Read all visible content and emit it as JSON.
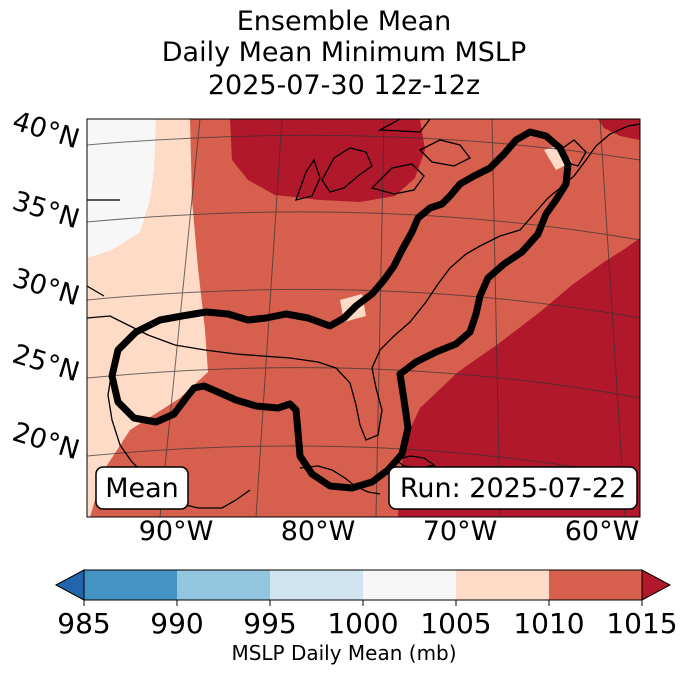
{
  "title": {
    "line1": "Ensemble Mean",
    "line2": "Daily Mean Minimum MSLP",
    "line3": "2025-07-30 12z-12z"
  },
  "map": {
    "lat_labels": [
      "40°N",
      "35°N",
      "30°N",
      "25°N",
      "20°N"
    ],
    "lon_labels": [
      "90°W",
      "80°W",
      "70°W",
      "60°W"
    ],
    "left_badge": "Mean",
    "right_badge": "Run: 2025-07-22",
    "colors": {
      "c1000_1005": "#f7f7f7",
      "c1005_1010": "#fddbc7",
      "c1010_1015": "#d6604d",
      "c1015_plus": "#b2182b",
      "contour": "#000000"
    }
  },
  "colorbar": {
    "ticks": [
      "985",
      "990",
      "995",
      "1000",
      "1005",
      "1010",
      "1015"
    ],
    "label": "MSLP Daily Mean (mb)",
    "bins": [
      {
        "range": "<985",
        "color": "#2166ac"
      },
      {
        "range": "985-990",
        "color": "#4393c3"
      },
      {
        "range": "990-995",
        "color": "#92c5de"
      },
      {
        "range": "995-1000",
        "color": "#d1e5f0"
      },
      {
        "range": "1000-1005",
        "color": "#f7f7f7"
      },
      {
        "range": "1005-1010",
        "color": "#fddbc7"
      },
      {
        "range": "1010-1015",
        "color": "#d6604d"
      },
      {
        "range": ">1015",
        "color": "#b2182b"
      }
    ]
  }
}
